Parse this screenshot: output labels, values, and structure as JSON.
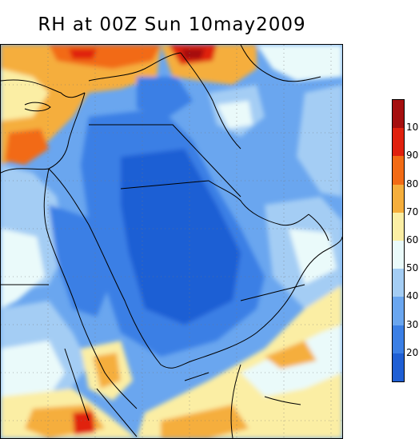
{
  "title": "RH at 00Z Sun 10may2009",
  "colorbar": {
    "labels": [
      "10",
      "90",
      "80",
      "70",
      "60",
      "50",
      "40",
      "30",
      "20"
    ],
    "colors": [
      "#a50f0f",
      "#e0210e",
      "#f26b15",
      "#f5ae3c",
      "#fbeea4",
      "#eafafa",
      "#a4cdf4",
      "#6aa6ef",
      "#3b7fe5",
      "#1f5fd4"
    ]
  }
}
